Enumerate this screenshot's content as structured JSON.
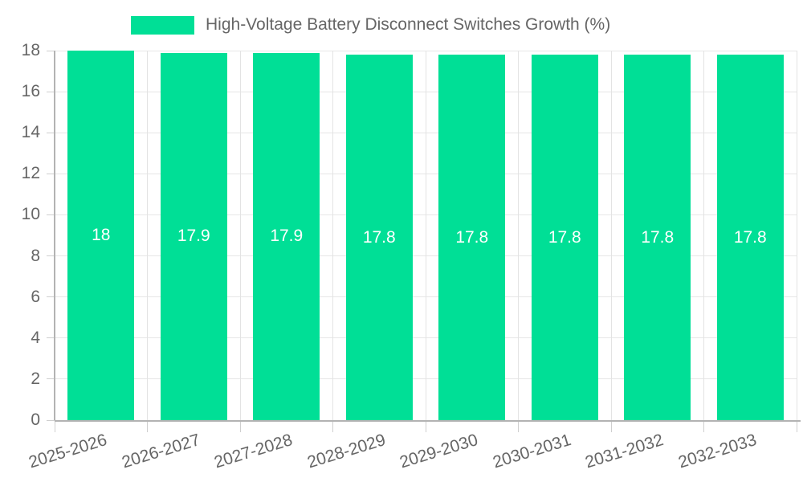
{
  "legend": {
    "label": "High-Voltage Battery Disconnect Switches Growth (%)"
  },
  "chart_data": {
    "type": "bar",
    "title": "High-Voltage Battery Disconnect Switches Growth (%)",
    "categories": [
      "2025-2026",
      "2026-2027",
      "2027-2028",
      "2028-2029",
      "2029-2030",
      "2030-2031",
      "2031-2032",
      "2032-2033"
    ],
    "values": [
      18,
      17.9,
      17.9,
      17.8,
      17.8,
      17.8,
      17.8,
      17.8
    ],
    "bar_labels": [
      "18",
      "17.9",
      "17.9",
      "17.8",
      "17.8",
      "17.8",
      "17.8",
      "17.8"
    ],
    "xlabel": "",
    "ylabel": "",
    "ylim": [
      0,
      18
    ],
    "yticks": [
      0,
      2,
      4,
      6,
      8,
      10,
      12,
      14,
      16,
      18
    ],
    "grid": true,
    "legend_position": "top",
    "colors": {
      "bar": "#00DF96",
      "bar_label": "#ffffff",
      "axis_text": "#666666",
      "grid": "#e6e6e6",
      "axis_line": "#b3b3b3"
    }
  }
}
